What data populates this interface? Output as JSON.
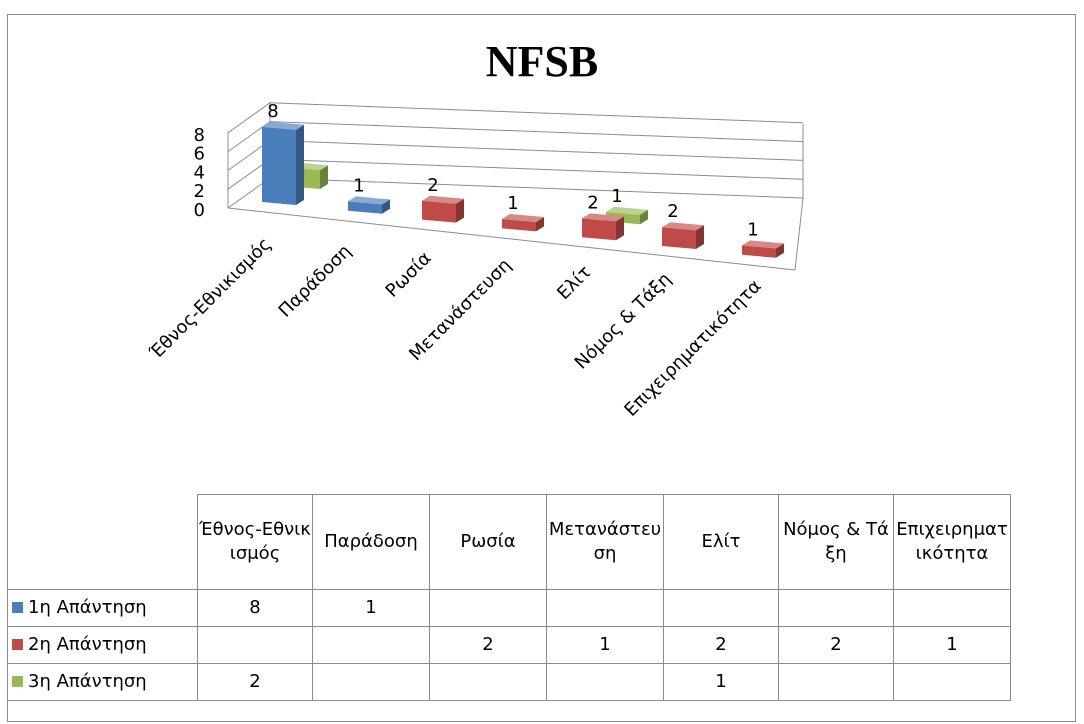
{
  "chart_data": {
    "type": "bar",
    "title": "NFSB",
    "categories": [
      "Έθνος-Εθνικισμός",
      "Παράδοση",
      "Ρωσία",
      "Μετανάστευση",
      "Ελίτ",
      "Νόμος & Τάξη",
      "Επιχειρηματικότητα"
    ],
    "table_headers": [
      "Έθνος-Εθνικισμός",
      "Παράδοση",
      "Ρωσία",
      "Μετανάστευση",
      "Ελίτ",
      "Νόμος & Τάξη",
      "Επιχειρηματικότητα"
    ],
    "y_ticks": [
      "0",
      "2",
      "4",
      "6",
      "8"
    ],
    "ylim": [
      0,
      8
    ],
    "grid": true,
    "legend": "data-table",
    "series": [
      {
        "name": "1η Απάντηση",
        "color": "#4a7ebb",
        "values": [
          8,
          1,
          null,
          null,
          null,
          null,
          null
        ]
      },
      {
        "name": "2η Απάντηση",
        "color": "#be4b48",
        "values": [
          null,
          null,
          2,
          1,
          2,
          2,
          1
        ]
      },
      {
        "name": "3η Απάντηση",
        "color": "#98b954",
        "values": [
          2,
          null,
          null,
          null,
          1,
          null,
          null
        ]
      }
    ]
  }
}
